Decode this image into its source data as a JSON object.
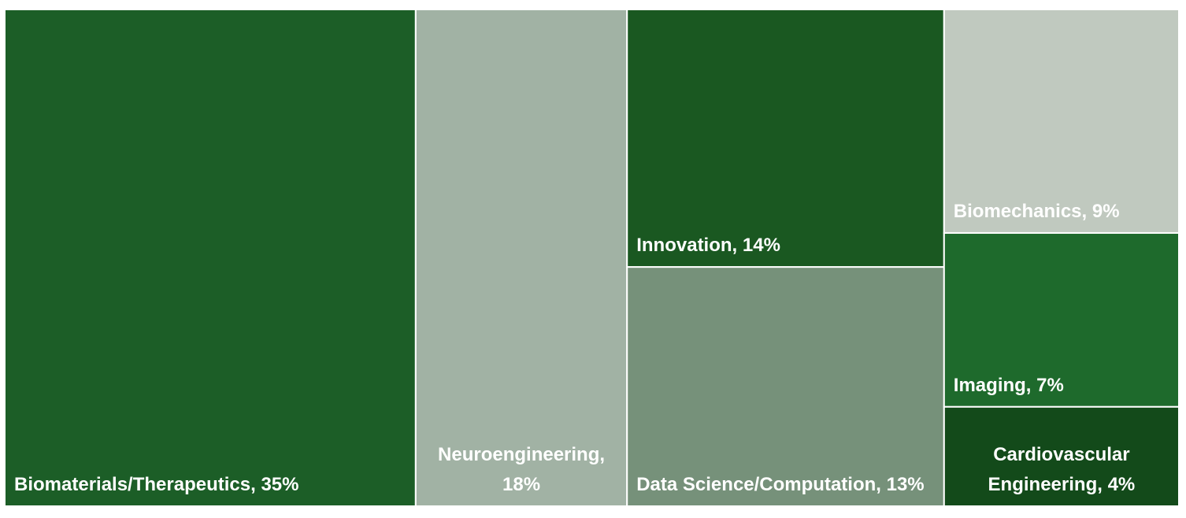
{
  "chart_data": {
    "type": "treemap",
    "values": [
      35,
      18,
      14,
      13,
      9,
      7,
      4
    ],
    "value_labels": [
      "Biomaterials/Therapeutics, 35%",
      "Neuroengineering, 18%",
      "Innovation, 14%",
      "Data Science/Computation, 13%",
      "Biomechanics, 9%",
      "Imaging, 7%",
      "Cardiovascular Engineering, 4%"
    ],
    "colors": [
      "#1c5e27",
      "#a1b2a4",
      "#1a5821",
      "#76917a",
      "#c0c9bf",
      "#1e6a2c",
      "#134a1a"
    ]
  }
}
